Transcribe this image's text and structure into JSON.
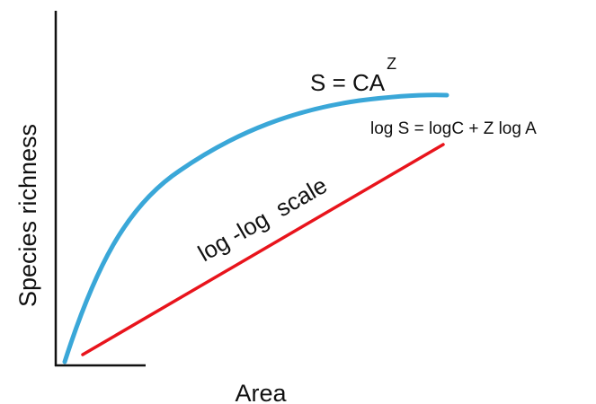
{
  "diagram": {
    "x_axis_label": "Area",
    "y_axis_label": "Species richness",
    "curve_equation": {
      "base": "S = CA",
      "superscript": "Z"
    },
    "line_equation": "log S = logC + Z log A",
    "line_label": "log -log  scale",
    "colors": {
      "axes": "#111111",
      "curve": "#3aa7d8",
      "line": "#e8141c",
      "text": "#111111"
    }
  }
}
